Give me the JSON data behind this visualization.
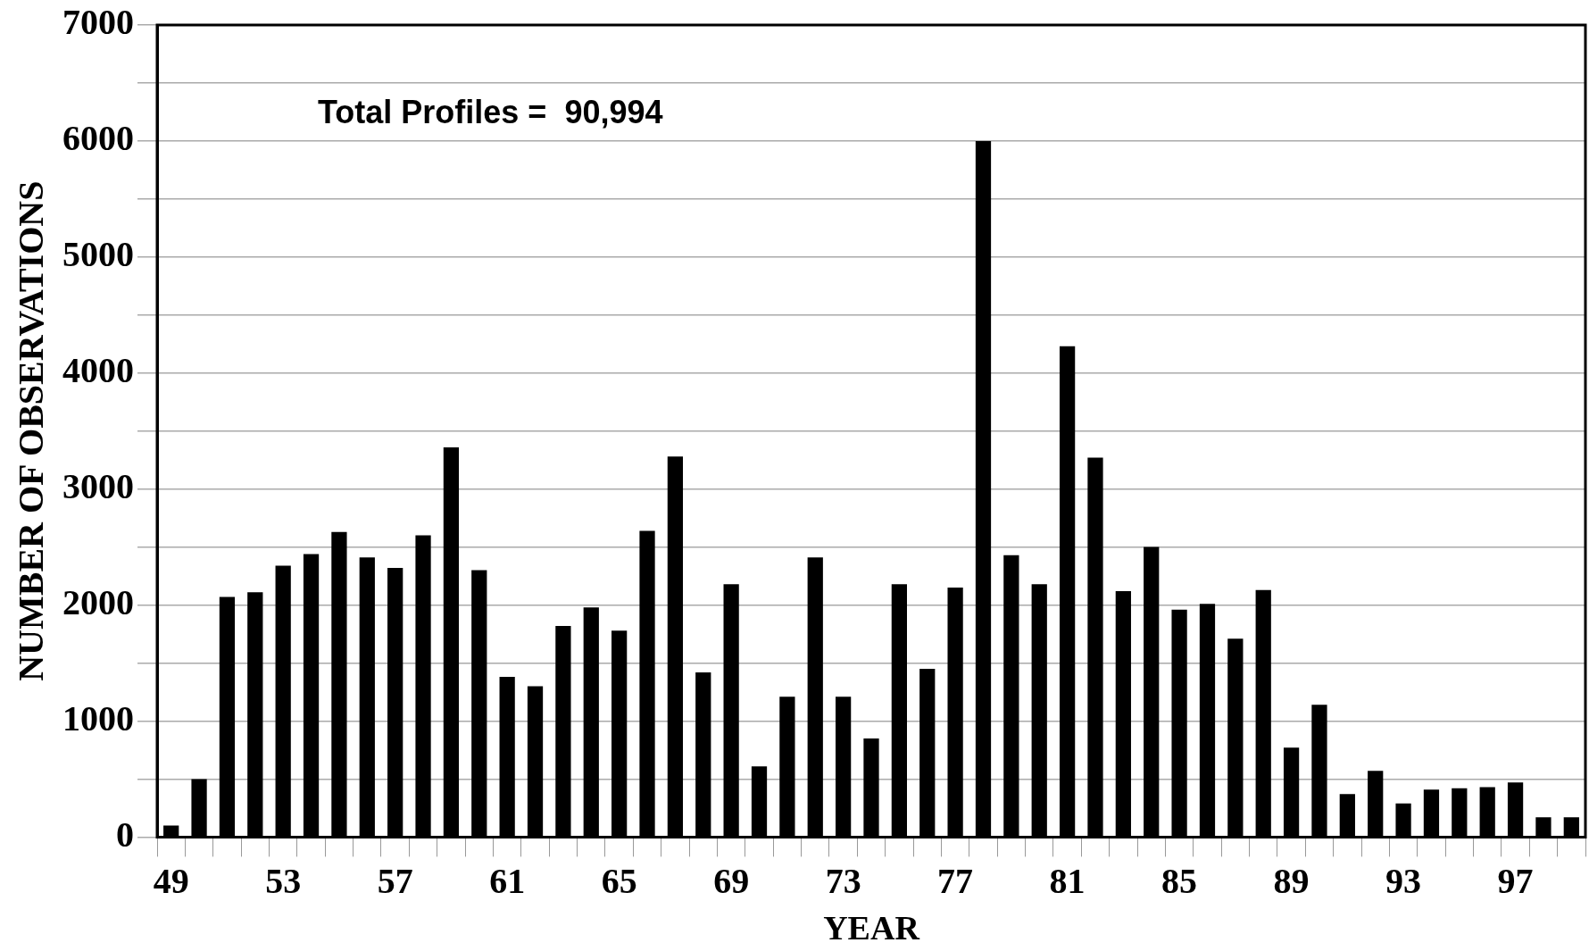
{
  "chart_data": {
    "type": "bar",
    "xlabel": "YEAR",
    "ylabel": "NUMBER OF OBSERVATIONS",
    "annotations": [
      "Total Profiles =  90,994"
    ],
    "categories": [
      "49",
      null,
      null,
      null,
      "53",
      null,
      null,
      null,
      "57",
      null,
      null,
      null,
      "61",
      null,
      null,
      null,
      "65",
      null,
      null,
      null,
      "69",
      null,
      null,
      null,
      "73",
      null,
      null,
      null,
      "77",
      null,
      null,
      null,
      "81",
      null,
      null,
      null,
      "85",
      null,
      null,
      null,
      "89",
      null,
      null,
      null,
      "93",
      null,
      null,
      null,
      "97",
      null,
      null
    ],
    "values": [
      100,
      500,
      2070,
      2110,
      2340,
      2440,
      2630,
      2410,
      2320,
      2600,
      3360,
      2300,
      1380,
      1300,
      1820,
      1980,
      1780,
      2640,
      3280,
      1420,
      2180,
      610,
      1210,
      2410,
      1210,
      850,
      2180,
      1450,
      2150,
      6000,
      2430,
      2180,
      4230,
      3270,
      2120,
      2500,
      1960,
      2010,
      1710,
      2130,
      770,
      1140,
      370,
      570,
      290,
      410,
      420,
      430,
      470,
      170,
      170
    ],
    "color": "#000000",
    "ylim": [
      0,
      7000
    ],
    "yticks": [
      0,
      {
        "value": 500,
        "label": null
      },
      1000,
      {
        "value": 1500,
        "label": null
      },
      2000,
      {
        "value": 2500,
        "label": null
      },
      3000,
      {
        "value": 3500,
        "label": null
      },
      4000,
      {
        "value": 4500,
        "label": null
      },
      5000,
      {
        "value": 5500,
        "label": null
      },
      6000,
      {
        "value": 6500,
        "label": null
      },
      7000
    ],
    "grid": "y",
    "legend": false
  }
}
